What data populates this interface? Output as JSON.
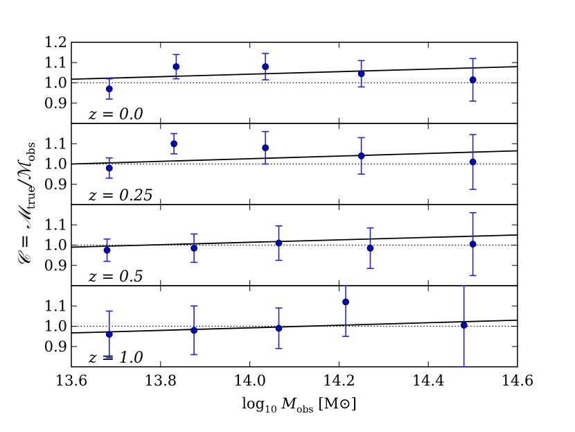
{
  "chart_data": {
    "type": "scatter",
    "xlabel": {
      "main": "log",
      "sub1": "10",
      "mid": " M",
      "sub2": "obs",
      "tail": " [M",
      "sun": "⊙",
      "end": "]"
    },
    "ylabel": {
      "c": "𝒞 = ℳ",
      "sub1": "true",
      "mid": "/ℳ",
      "sub2": "obs"
    },
    "xlim": [
      13.6,
      14.6
    ],
    "x_ticks": [
      "13.6",
      "13.8",
      "14.0",
      "14.2",
      "14.4",
      "14.6"
    ],
    "x_tick_values": [
      13.6,
      13.8,
      14.0,
      14.2,
      14.4,
      14.6
    ],
    "ylim": [
      0.8,
      1.2
    ],
    "y_ticks_top": [
      "1.2",
      "1.1",
      "1.0",
      "0.9"
    ],
    "y_tick_values": [
      1.2,
      1.1,
      1.0,
      0.9
    ],
    "reference_line": 1.0,
    "marker_color": "#0000cc",
    "errorbar_color": "#2222dd",
    "panels": [
      {
        "label": "z = 0.0",
        "points": [
          {
            "x": 13.685,
            "y": 0.97,
            "err": 0.05
          },
          {
            "x": 13.835,
            "y": 1.08,
            "err": 0.06
          },
          {
            "x": 14.035,
            "y": 1.08,
            "err": 0.065
          },
          {
            "x": 14.25,
            "y": 1.045,
            "err": 0.065
          },
          {
            "x": 14.5,
            "y": 1.015,
            "err": 0.105
          }
        ],
        "fit": {
          "x0": 13.6,
          "y0": 1.018,
          "x1": 14.6,
          "y1": 1.08
        }
      },
      {
        "label": "z = 0.25",
        "points": [
          {
            "x": 13.685,
            "y": 0.98,
            "err": 0.05
          },
          {
            "x": 13.83,
            "y": 1.1,
            "err": 0.05
          },
          {
            "x": 14.035,
            "y": 1.08,
            "err": 0.08
          },
          {
            "x": 14.25,
            "y": 1.04,
            "err": 0.09
          },
          {
            "x": 14.5,
            "y": 1.01,
            "err": 0.135
          }
        ],
        "fit": {
          "x0": 13.6,
          "y0": 1.0,
          "x1": 14.6,
          "y1": 1.065
        }
      },
      {
        "label": "z = 0.5",
        "points": [
          {
            "x": 13.68,
            "y": 0.975,
            "err": 0.055
          },
          {
            "x": 13.875,
            "y": 0.985,
            "err": 0.07
          },
          {
            "x": 14.065,
            "y": 1.01,
            "err": 0.085
          },
          {
            "x": 14.27,
            "y": 0.985,
            "err": 0.1
          },
          {
            "x": 14.5,
            "y": 1.005,
            "err": 0.155
          }
        ],
        "fit": {
          "x0": 13.6,
          "y0": 0.99,
          "x1": 14.6,
          "y1": 1.05
        }
      },
      {
        "label": "z = 1.0",
        "points": [
          {
            "x": 13.685,
            "y": 0.96,
            "err": 0.115
          },
          {
            "x": 13.875,
            "y": 0.98,
            "err": 0.12
          },
          {
            "x": 14.065,
            "y": 0.99,
            "err": 0.1
          },
          {
            "x": 14.215,
            "y": 1.12,
            "err": 0.17
          },
          {
            "x": 14.48,
            "y": 1.005,
            "err": 0.22
          }
        ],
        "fit": {
          "x0": 13.6,
          "y0": 0.967,
          "x1": 14.6,
          "y1": 1.03
        }
      }
    ]
  }
}
